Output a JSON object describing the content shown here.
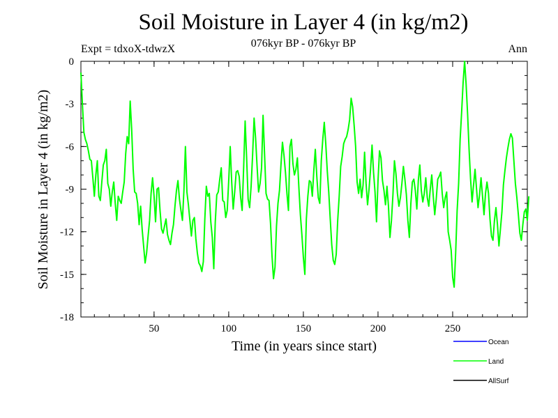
{
  "chart_data": {
    "type": "line",
    "title": "Soil Moisture in Layer 4 (in kg/m2)",
    "subtitle": "076kyr BP - 076kyr BP",
    "experiment_label": "Expt = tdxoX-tdwzX",
    "season_label": "Ann",
    "xlabel": "Time (in years since start)",
    "ylabel": "Soil Moisture in Layer 4 (in kg/m2)",
    "xlim": [
      1,
      300
    ],
    "ylim": [
      -18,
      0
    ],
    "x_ticks": [
      50,
      100,
      150,
      200,
      250
    ],
    "y_ticks": [
      0,
      -3,
      -6,
      -9,
      -12,
      -15,
      -18
    ],
    "grid": false,
    "legend_position": "bottom-right",
    "legend": [
      {
        "name": "Ocean",
        "color": "#0000ff"
      },
      {
        "name": "Land",
        "color": "#00ff00"
      },
      {
        "name": "AllSurf",
        "color": "#000000"
      }
    ],
    "series": [
      {
        "name": "Land",
        "color": "#00ff00",
        "x_start": 1,
        "x_step": 1,
        "values": [
          -0.8,
          -3,
          -5,
          -5.5,
          -5.8,
          -6.3,
          -6.9,
          -7,
          -8.2,
          -9.5,
          -8,
          -7,
          -9.5,
          -9.8,
          -8.5,
          -7.3,
          -7,
          -6.2,
          -8.6,
          -9,
          -10.2,
          -9.2,
          -8.5,
          -10,
          -11.2,
          -9.5,
          -9.8,
          -10,
          -9.2,
          -8.5,
          -6.5,
          -5.3,
          -5.8,
          -2.8,
          -4.8,
          -7.6,
          -9.2,
          -9.3,
          -10,
          -11.5,
          -10.2,
          -11.8,
          -13,
          -14.2,
          -13.5,
          -12.3,
          -11.2,
          -9.3,
          -8.2,
          -9.5,
          -11.3,
          -9,
          -8.9,
          -10.5,
          -11.8,
          -12.1,
          -11.6,
          -11.1,
          -12.2,
          -12.6,
          -12.9,
          -12.1,
          -11.5,
          -10.2,
          -9.1,
          -8.4,
          -9.7,
          -10.5,
          -11.2,
          -9.1,
          -6,
          -9.2,
          -10.1,
          -11.2,
          -12.3,
          -11.2,
          -11,
          -12.5,
          -13.5,
          -14.2,
          -14.4,
          -14.8,
          -14.1,
          -11.1,
          -8.8,
          -9.5,
          -9.3,
          -11.3,
          -12.4,
          -14.6,
          -11.3,
          -9.4,
          -9.2,
          -8.3,
          -7.5,
          -9.8,
          -9.9,
          -11,
          -10.5,
          -8.4,
          -6,
          -8.5,
          -10.4,
          -9.2,
          -7.8,
          -7.7,
          -8.1,
          -9.6,
          -10.5,
          -7.5,
          -4.2,
          -6.8,
          -9.7,
          -10.3,
          -8.8,
          -6.6,
          -4,
          -5.4,
          -7.4,
          -9.2,
          -8.6,
          -7.5,
          -3.8,
          -6.5,
          -9.3,
          -9.7,
          -9.8,
          -11.4,
          -13.7,
          -15.3,
          -14.5,
          -11.6,
          -10,
          -9.1,
          -7.3,
          -5.7,
          -6.6,
          -7.8,
          -9.3,
          -10.5,
          -6,
          -5.5,
          -7.2,
          -8,
          -7.6,
          -6.8,
          -8.9,
          -10.8,
          -12.2,
          -13.8,
          -15,
          -11.1,
          -9.5,
          -8.4,
          -8.5,
          -9.5,
          -7.7,
          -6.2,
          -8.1,
          -9.6,
          -10,
          -7,
          -5.5,
          -4.3,
          -5.8,
          -7.7,
          -9.2,
          -11.1,
          -12.9,
          -14,
          -14.3,
          -13.6,
          -11.2,
          -9.5,
          -7.4,
          -6.7,
          -5.8,
          -5.5,
          -5.3,
          -4.8,
          -4.1,
          -2.6,
          -3.2,
          -4.5,
          -6,
          -8.5,
          -9.3,
          -8.3,
          -9.6,
          -8.7,
          -6.4,
          -8.6,
          -10.1,
          -9,
          -7.6,
          -5.9,
          -7.8,
          -9.2,
          -11.3,
          -8.4,
          -6.3,
          -6.8,
          -8.4,
          -9.1,
          -10.1,
          -8.8,
          -10.2,
          -12.4,
          -11.2,
          -9.4,
          -7,
          -7.9,
          -9.3,
          -10.2,
          -9.6,
          -8.6,
          -7.4,
          -8.3,
          -9.4,
          -11.2,
          -12.4,
          -10,
          -8.5,
          -8.3,
          -9.1,
          -10.4,
          -8.4,
          -7.3,
          -9.1,
          -9.9,
          -9.3,
          -8.2,
          -9.6,
          -10.2,
          -9,
          -8,
          -9.5,
          -10.8,
          -9.7,
          -8.3,
          -8.1,
          -7.8,
          -9.3,
          -10.3,
          -9.6,
          -9.2,
          -12,
          -12.6,
          -13.3,
          -15.2,
          -15.9,
          -13.5,
          -10.5,
          -8.6,
          -5.5,
          -3.6,
          -1.5,
          0,
          -1.6,
          -3.7,
          -6.2,
          -8.3,
          -9.9,
          -8.7,
          -7.6,
          -9,
          -10.3,
          -9.4,
          -8.2,
          -9.5,
          -10.8,
          -9.3,
          -8.5,
          -9.3,
          -11.1,
          -12.3,
          -12.6,
          -11.2,
          -10.3,
          -11.5,
          -13,
          -11.8,
          -10.6,
          -8.7,
          -7.7,
          -6.8,
          -6.1,
          -5.5,
          -5.1,
          -5.4,
          -7,
          -8.6,
          -9.6,
          -10.8,
          -12.1,
          -12.6,
          -11.5,
          -10.6,
          -10.4,
          -11.2,
          -9.5
        ]
      }
    ]
  }
}
